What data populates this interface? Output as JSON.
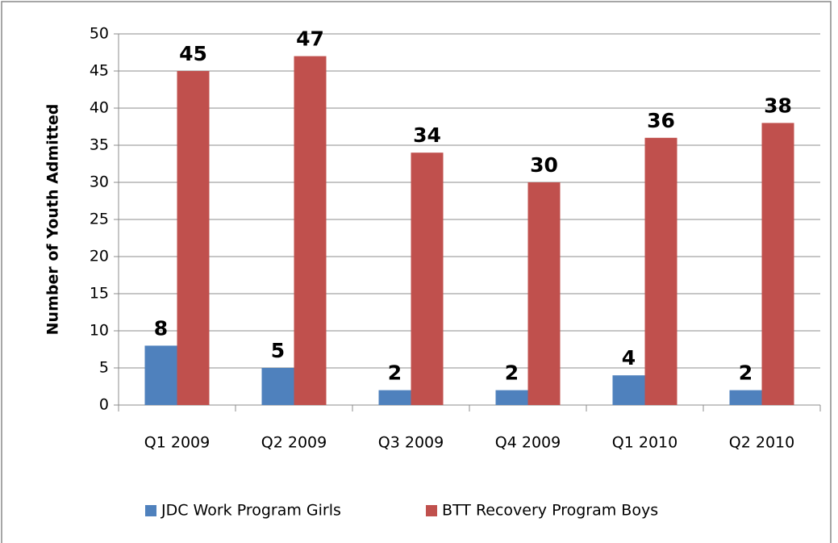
{
  "chart_data": {
    "type": "bar",
    "y_label": "Number of Youth Admitted",
    "categories": [
      "Q1 2009",
      "Q2 2009",
      "Q3 2009",
      "Q4 2009",
      "Q1 2010",
      "Q2 2010"
    ],
    "series": [
      {
        "name": "JDC Work Program Girls",
        "color": "#4f81bd",
        "values": [
          8,
          5,
          2,
          2,
          4,
          2
        ]
      },
      {
        "name": "BTT Recovery Program Boys",
        "color": "#c0504d",
        "values": [
          45,
          47,
          34,
          30,
          36,
          38
        ]
      }
    ],
    "ylim": [
      0,
      50
    ],
    "yticks": [
      0,
      5,
      10,
      15,
      20,
      25,
      30,
      35,
      40,
      45,
      50
    ],
    "grid": true,
    "legend": "bottom"
  }
}
